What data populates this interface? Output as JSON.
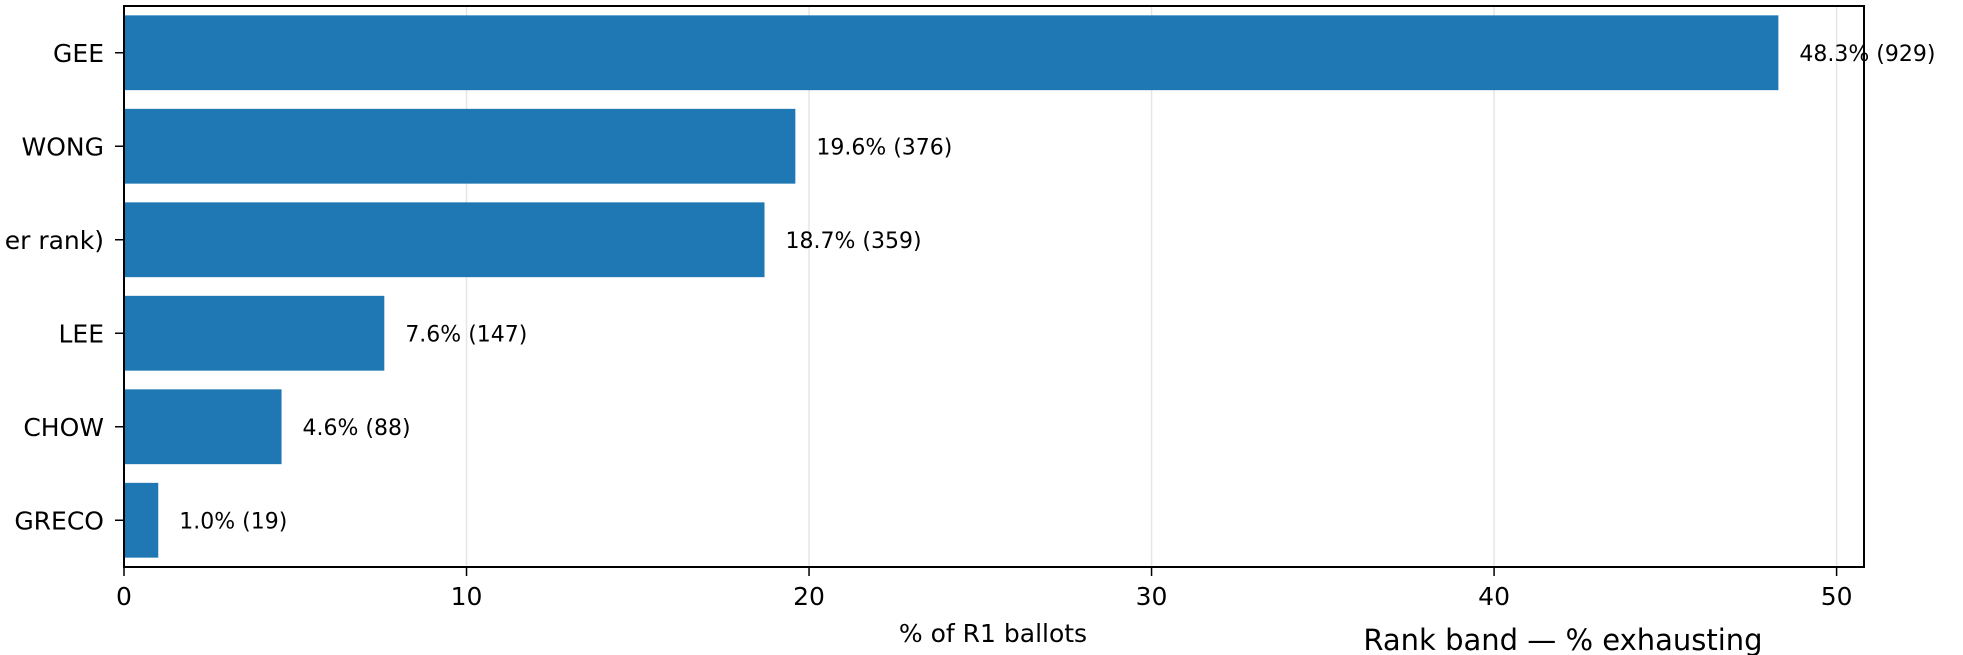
{
  "chart_data": {
    "type": "bar",
    "orientation": "horizontal",
    "categories": [
      "GEE",
      "WONG",
      "er rank)",
      "LEE",
      "CHOW",
      "GRECO"
    ],
    "values": [
      48.3,
      19.6,
      18.7,
      7.6,
      4.6,
      1.0
    ],
    "data_labels": [
      "48.3% (929)",
      "19.6% (376)",
      "18.7% (359)",
      "7.6% (147)",
      "4.6% (88)",
      "1.0% (19)"
    ],
    "xlabel": "% of R1 ballots",
    "side_title": "Rank band — % exhausting",
    "xlim": [
      0,
      50.8
    ],
    "xticks": [
      0,
      10,
      20,
      30,
      40,
      50
    ],
    "grid": "vertical",
    "bar_color": "#1f77b4"
  }
}
